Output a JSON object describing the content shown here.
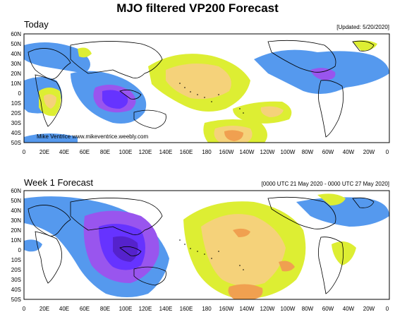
{
  "title": "MJO filtered VP200 Forecast",
  "latitude_labels": [
    "60N",
    "50N",
    "40N",
    "30N",
    "20N",
    "10N",
    "0",
    "10S",
    "20S",
    "30S",
    "40S",
    "50S"
  ],
  "longitude_labels": [
    "0",
    "20E",
    "40E",
    "60E",
    "80E",
    "100E",
    "120E",
    "140E",
    "160E",
    "180",
    "160W",
    "140W",
    "120W",
    "100W",
    "80W",
    "60W",
    "40W",
    "20W",
    "0"
  ],
  "colors": {
    "strong_negative": "#6633ff",
    "negative": "#9955ee",
    "blue": "#5599ee",
    "yellow": "#ddee33",
    "orange": "#f5d27a",
    "dark_orange": "#f0a050",
    "land_outline": "#000000"
  },
  "panels": [
    {
      "name": "today",
      "title": "Today",
      "note": "[Updated: 5/20/2020]",
      "credit": "Mike Ventrice www.mikeventrice.weebly.com"
    },
    {
      "name": "week1",
      "title": "Week 1 Forecast",
      "note": "[0000 UTC 21 May 2020 - 0000 UTC 27 May 2020]",
      "credit": ""
    }
  ]
}
